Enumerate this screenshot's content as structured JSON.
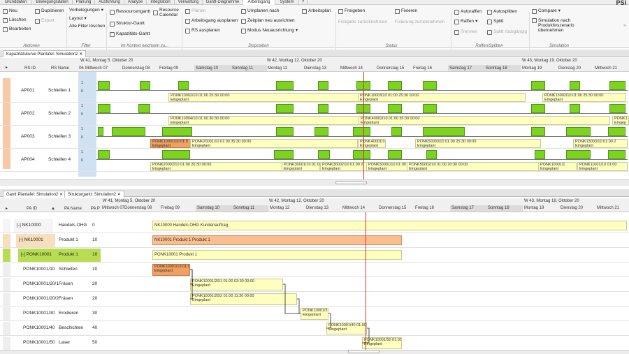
{
  "menu_tabs": [
    "Grunddaten",
    "Bewegungsdaten",
    "Planung",
    "Ausführung",
    "Analyse",
    "Integration",
    "Verwaltung",
    "Gantt-Diagramme",
    "Arbeitsgang",
    "System",
    "?"
  ],
  "logo": "PSI",
  "ribbon": {
    "neu": "Neu",
    "loeschen": "Löschen",
    "bearbeiten": "Bearbeiten",
    "duplizieren": "Duplizieren",
    "export": "Export",
    "vorbelegungen": "Vorbelegungen",
    "layout": "Layout",
    "alle_filter": "Alle Filter löschen",
    "ressourcengantt": "Ressourcengantt",
    "resource_calendar": "Resource Calendar",
    "struktur_gantt": "Struktur-Gantt",
    "kapazitaets_gantt": "Kapazitäts-Gantt",
    "planen": "Planen",
    "arbeitsgang_ausplanen": "Arbeitsgang ausplanen",
    "rs_ausplanen": "RS ausplanen",
    "umplanen": "Umplanen nach",
    "zeitplan": "Zeitplan neu ausrichten",
    "modus": "Modus Neuausrichtung",
    "arbeitsplan": "Arbeitsplan",
    "freigeben": "Freigeben",
    "freigabe_zurueck": "Freigabe zurücknehmen",
    "fixieren": "Fixieren",
    "fixierung_zurueck": "Fixierung zurücknehmen",
    "autoraffen": "Autoraffen",
    "raffen": "Raffen",
    "trennen": "Trennen",
    "autosplitten": "Autosplitten",
    "splitt": "Splitt",
    "splitt_rueck": "Splitt rückgängig",
    "compare": "Compare",
    "simulation": "Simulation nach Produktivszenario übernehmen",
    "groups": [
      "Aktionen",
      "Filter",
      "Im Kontext wechseln zu...",
      "Disposition",
      "Status",
      "Raffen/Splitten",
      "Simulation"
    ]
  },
  "top_panel": {
    "tab": "Kapazitätskurve Plantafel: Simulation2",
    "cols": [
      "RS ID",
      "RS Name"
    ],
    "weeks": [
      "W 41, Montag 5. Oktober 20",
      "W 42, Montag 12. Oktober 20",
      "W 43, Montag 19. Oktober 20"
    ],
    "days": [
      "06",
      "Mittwoch 07",
      "Donnerstag 08",
      "Freitag 09",
      "Samstag 10",
      "Sonntag 11",
      "Montag 12",
      "Dienstag 13",
      "Mittwoch 14",
      "Donnerstag 15",
      "Freitag 16",
      "Samstag 17",
      "Sonntag 18",
      "Montag 19",
      "Dienstag 20",
      "Mittwoch 21"
    ],
    "rows": [
      {
        "id": "AP001",
        "name": "Schleifen 1"
      },
      {
        "id": "AP002",
        "name": "Schleifen 2"
      },
      {
        "id": "AP003",
        "name": "Schleifen 3"
      },
      {
        "id": "AP004",
        "name": "Schleifen 4"
      }
    ],
    "axis": [
      "1",
      "0"
    ],
    "bars": [
      {
        "l": "PONK10002/10 01:00 25:30 00:00",
        "s": "Eingeplant"
      },
      {
        "l": "PONK10003/10 01:00 25:30 00:00",
        "s": "Eingeplant"
      },
      {
        "l": "PONK13002/10 01:00 25:30 00:00",
        "s": "Eingeplant"
      },
      {
        "l": "PONK10004/10 01:00 30:30 00:00",
        "s": "Eingeplant"
      },
      {
        "l": "PONK40002/10 01:00 35:30 00:00",
        "s": "Eingeplant"
      },
      {
        "l": "PONK1",
        "s": "Eingep"
      },
      {
        "l": "PONK10001/10 01:0",
        "s": "Eingeplant"
      },
      {
        "l": "PONK20001/10 01:00 35:30 00:00",
        "s": "Eingeplant"
      },
      {
        "l": "PONK40001/10 01:00 2",
        "s": "Eingeplant"
      },
      {
        "l": "PONK50003/10 01:00 25:30 00:00",
        "s": "Eingeplant"
      },
      {
        "l": "PONK13003/10 01:00 2",
        "s": "Eingeplant"
      },
      {
        "l": "PONK20002/10 01:00 20:30 00:00",
        "s": "Eingeplant"
      },
      {
        "l": "PONK30001/10 01:00 2",
        "s": "Eingeplant"
      },
      {
        "l": "PONK30002/10 01:00 2",
        "s": "Eingeplant"
      },
      {
        "l": "PONK50001/10 01:00 2",
        "s": "Eingeplant"
      },
      {
        "l": "PONK50002/10 01:00 20:30 00:00",
        "s": "Eingeplant"
      },
      {
        "l": "PONK10001/1",
        "s": "Eingeplant"
      },
      {
        "l": "PONK11001/10 01:00",
        "s": "Eingeplant"
      }
    ]
  },
  "bottom_panel": {
    "tabs": [
      "Gantt Plantafel: Simulation2",
      "Strukturgantt: Simulation2"
    ],
    "cols": [
      "PA ID",
      "PA Name",
      "PA P"
    ],
    "weeks": [
      "W 41, Montag 5. Oktober 20",
      "W 42, Montag 12. Oktober 20",
      "W 43, Montag 19. Oktober 20"
    ],
    "days": [
      "Mittwoch 07",
      "Donnerstag 08",
      "Freitag 09",
      "Samstag 10",
      "Sonntag 11",
      "Montag 12",
      "Dienstag 13",
      "Mittwoch 14",
      "Donnerstag 15",
      "Freitag 16",
      "Samstag 17",
      "Sonntag 18",
      "Montag 19",
      "Dienstag 20",
      "Mittwoch 21"
    ],
    "rows": [
      {
        "id": "[-] NK10000",
        "name": "Handels OHG",
        "p": "0"
      },
      {
        "id": "[-] NK10001",
        "name": "Produkt 1",
        "p": "10"
      },
      {
        "id": "[-] PONK10001",
        "name": "Produkt 1",
        "p": "10"
      },
      {
        "id": "PONK10001/10",
        "name": "Schleifen",
        "p": "10"
      },
      {
        "id": "PONK10001/20/1",
        "name": "Fräsen",
        "p": "20"
      },
      {
        "id": "PONK10001/20/2",
        "name": "Fräsen",
        "p": "20"
      },
      {
        "id": "PONK10001/30",
        "name": "Erodieren",
        "p": "30"
      },
      {
        "id": "PONK10001/40",
        "name": "Beschichten",
        "p": "40"
      },
      {
        "id": "PONK10001/50",
        "name": "Laser",
        "p": "50"
      }
    ],
    "bars": [
      {
        "l": "NK10000 Handels OHG Kundenauftrag",
        "s": ""
      },
      {
        "l": "NK10001 Produkt 1 Produkt 1",
        "s": ""
      },
      {
        "l": "PONK10001 Produkt 1",
        "s": ""
      },
      {
        "l": "PONK10001/10 01:00",
        "s": "Eingeplant"
      },
      {
        "l": "PONK10001/20/1 01:00 03:30 00:00",
        "s": "Eingeplant"
      },
      {
        "l": "PONK10001/20/2 01:00 11:30 00:00",
        "s": "Eingeplant"
      },
      {
        "l": "PONK10001/3",
        "s": "Eingeplant"
      },
      {
        "l": "PONK10001/40 01:00",
        "s": "Eingeplant"
      },
      {
        "l": "PONK10001/50 01:00",
        "s": "Eingeplant"
      }
    ]
  }
}
